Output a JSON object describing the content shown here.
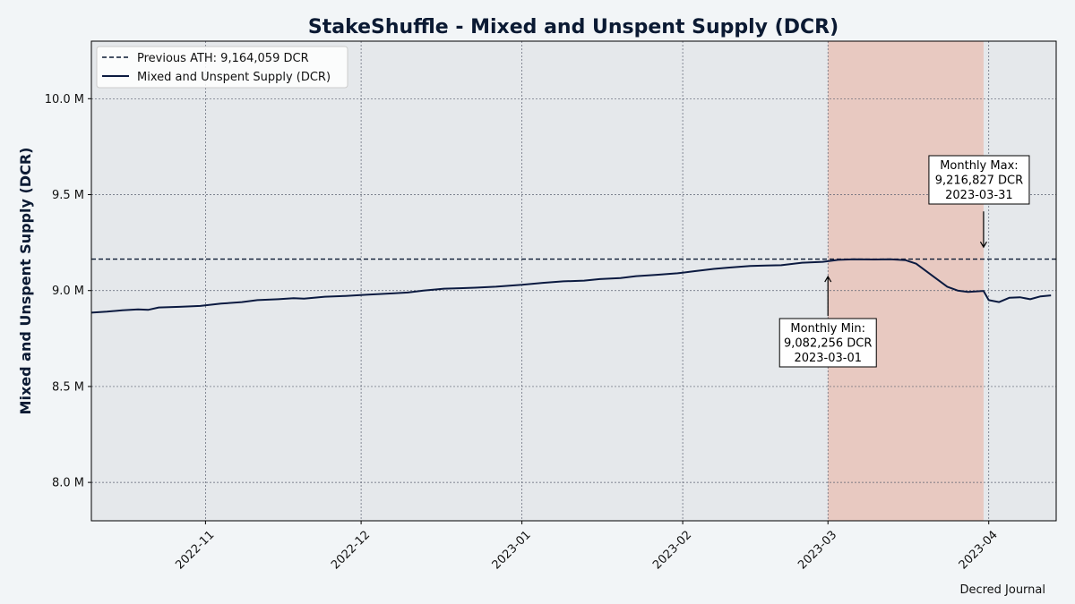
{
  "chart_data": {
    "type": "line",
    "title": "StakeShuffle - Mixed and Unspent Supply (DCR)",
    "xlabel": "",
    "ylabel": "Mixed and Unspent Supply (DCR)",
    "ylim": [
      7800000,
      10300000
    ],
    "xlim": [
      "2022-10-10",
      "2023-04-14"
    ],
    "grid": true,
    "legend_position": "top-left",
    "y_ticks": [
      {
        "value": 8000000,
        "label": "8.0 M"
      },
      {
        "value": 8500000,
        "label": "8.5 M"
      },
      {
        "value": 9000000,
        "label": "9.0 M"
      },
      {
        "value": 9500000,
        "label": "9.5 M"
      },
      {
        "value": 10000000,
        "label": "10.0 M"
      }
    ],
    "x_ticks": [
      {
        "date": "2022-11-01",
        "label": "2022-11"
      },
      {
        "date": "2022-12-01",
        "label": "2022-12"
      },
      {
        "date": "2023-01-01",
        "label": "2023-01"
      },
      {
        "date": "2023-02-01",
        "label": "2023-02"
      },
      {
        "date": "2023-03-01",
        "label": "2023-03"
      },
      {
        "date": "2023-04-01",
        "label": "2023-04"
      }
    ],
    "reference_line": {
      "label": "Previous ATH: 9,164,059 DCR",
      "value": 9164059
    },
    "highlight_range": {
      "start": "2023-03-01",
      "end": "2023-03-31"
    },
    "series": [
      {
        "name": "Mixed and Unspent Supply (DCR)",
        "points": [
          [
            "2022-10-10",
            8885000
          ],
          [
            "2022-10-13",
            8890000
          ],
          [
            "2022-10-16",
            8897000
          ],
          [
            "2022-10-19",
            8902000
          ],
          [
            "2022-10-21",
            8900000
          ],
          [
            "2022-10-23",
            8912000
          ],
          [
            "2022-10-27",
            8915000
          ],
          [
            "2022-10-31",
            8920000
          ],
          [
            "2022-11-04",
            8932000
          ],
          [
            "2022-11-08",
            8940000
          ],
          [
            "2022-11-11",
            8950000
          ],
          [
            "2022-11-15",
            8955000
          ],
          [
            "2022-11-18",
            8960000
          ],
          [
            "2022-11-20",
            8958000
          ],
          [
            "2022-11-24",
            8968000
          ],
          [
            "2022-11-28",
            8972000
          ],
          [
            "2022-12-02",
            8978000
          ],
          [
            "2022-12-07",
            8985000
          ],
          [
            "2022-12-10",
            8990000
          ],
          [
            "2022-12-13",
            9000000
          ],
          [
            "2022-12-17",
            9010000
          ],
          [
            "2022-12-20",
            9012000
          ],
          [
            "2022-12-23",
            9015000
          ],
          [
            "2022-12-27",
            9020000
          ],
          [
            "2023-01-01",
            9030000
          ],
          [
            "2023-01-05",
            9040000
          ],
          [
            "2023-01-09",
            9048000
          ],
          [
            "2023-01-13",
            9052000
          ],
          [
            "2023-01-16",
            9060000
          ],
          [
            "2023-01-20",
            9065000
          ],
          [
            "2023-01-23",
            9075000
          ],
          [
            "2023-01-27",
            9082000
          ],
          [
            "2023-01-31",
            9090000
          ],
          [
            "2023-02-03",
            9100000
          ],
          [
            "2023-02-07",
            9113000
          ],
          [
            "2023-02-10",
            9120000
          ],
          [
            "2023-02-14",
            9128000
          ],
          [
            "2023-02-17",
            9130000
          ],
          [
            "2023-02-20",
            9132000
          ],
          [
            "2023-02-24",
            9145000
          ],
          [
            "2023-02-28",
            9150000
          ],
          [
            "2023-03-03",
            9160000
          ],
          [
            "2023-03-06",
            9163000
          ],
          [
            "2023-03-10",
            9162000
          ],
          [
            "2023-03-13",
            9163000
          ],
          [
            "2023-03-16",
            9158000
          ],
          [
            "2023-03-18",
            9140000
          ],
          [
            "2023-03-21",
            9080000
          ],
          [
            "2023-03-24",
            9020000
          ],
          [
            "2023-03-26",
            9000000
          ],
          [
            "2023-03-28",
            8993000
          ],
          [
            "2023-03-31",
            8998000
          ],
          [
            "2023-04-01",
            8950000
          ],
          [
            "2023-04-03",
            8940000
          ],
          [
            "2023-04-05",
            8963000
          ],
          [
            "2023-04-07",
            8965000
          ],
          [
            "2023-04-09",
            8955000
          ],
          [
            "2023-04-11",
            8970000
          ],
          [
            "2023-04-13",
            8975000
          ]
        ]
      }
    ],
    "annotations": [
      {
        "lines": [
          "Monthly Min:",
          "9,082,256 DCR",
          "2023-03-01"
        ],
        "date": "2023-03-01",
        "value": 9082256
      },
      {
        "lines": [
          "Monthly Max:",
          "9,216,827 DCR",
          "2023-03-31"
        ],
        "date": "2023-03-31",
        "value": 9216827
      }
    ],
    "credit": "Decred Journal"
  }
}
